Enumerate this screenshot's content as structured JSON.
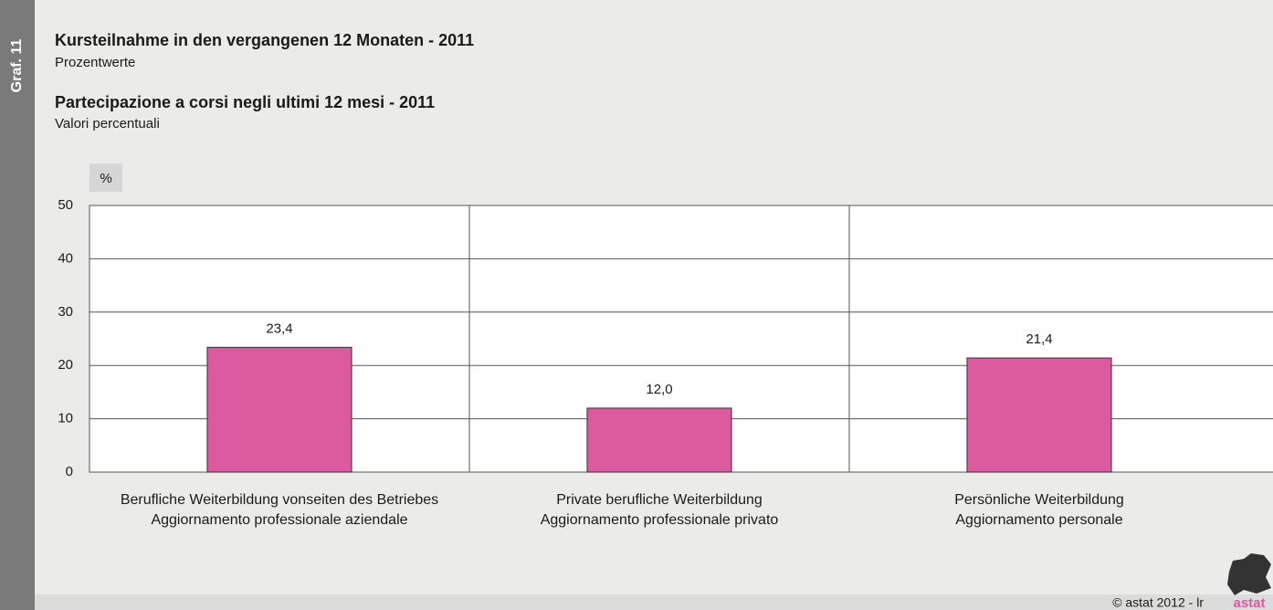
{
  "sidebar": "Graf. 11",
  "chart_data": {
    "type": "bar",
    "title": "Kursteilnahme in den vergangenen 12 Monaten - 2011",
    "subtitle": "Prozentwerte",
    "title_it": "Partecipazione a corsi negli ultimi 12 mesi - 2011",
    "subtitle_it": "Valori percentuali",
    "y_axis_label": "%",
    "categories": [
      [
        "Berufliche Weiterbildung vonseiten des Betriebes",
        "Aggiornamento professionale aziendale"
      ],
      [
        "Private berufliche Weiterbildung",
        "Aggiornamento professionale privato"
      ],
      [
        "Persönliche Weiterbildung",
        "Aggiornamento personale"
      ]
    ],
    "values": [
      23.4,
      12.0,
      21.4
    ],
    "value_labels": [
      "23,4",
      "12,0",
      "21,4"
    ],
    "color": "#dc5aa0",
    "ylim": [
      0,
      50
    ],
    "yticks": [
      0,
      10,
      20,
      30,
      40,
      50
    ],
    "grid": true
  },
  "footer": "© astat 2012 - lr",
  "logo": "astat"
}
